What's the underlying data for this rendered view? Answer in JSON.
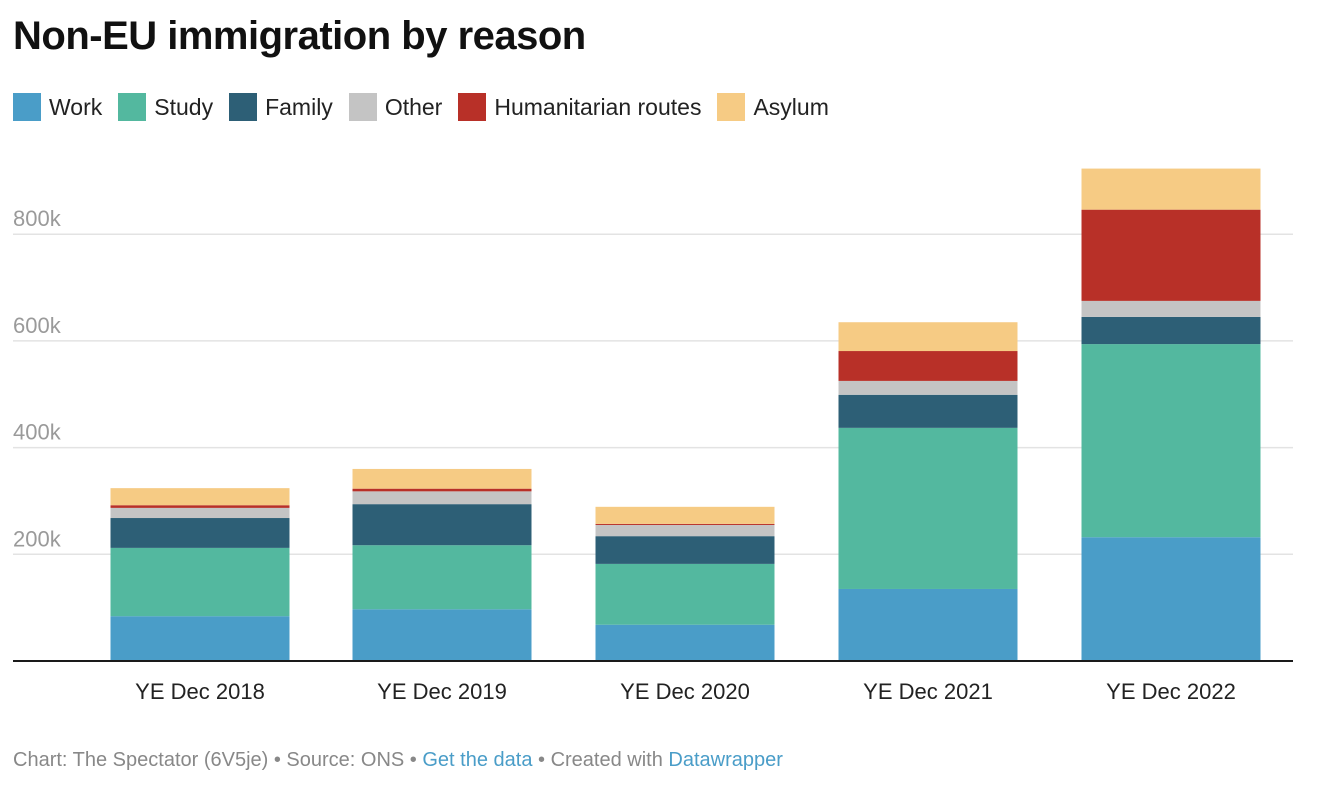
{
  "chart_data": {
    "type": "bar",
    "stacked": true,
    "title": "Non-EU immigration by reason",
    "xlabel": "",
    "ylabel": "",
    "ylim": [
      0,
      930000
    ],
    "yticks": [
      200000,
      400000,
      600000,
      800000
    ],
    "ytick_labels": [
      "200k",
      "400k",
      "600k",
      "800k"
    ],
    "grid": true,
    "legend_position": "top-left",
    "categories": [
      "YE Dec 2018",
      "YE Dec 2019",
      "YE Dec 2020",
      "YE Dec 2021",
      "YE Dec 2022"
    ],
    "series": [
      {
        "name": "Work",
        "color": "#4a9dc8",
        "values": [
          84000,
          97000,
          68000,
          135000,
          232000
        ]
      },
      {
        "name": "Study",
        "color": "#53b89f",
        "values": [
          128000,
          120000,
          114000,
          302000,
          362000
        ]
      },
      {
        "name": "Family",
        "color": "#2d5f76",
        "values": [
          56000,
          77000,
          52000,
          62000,
          51000
        ]
      },
      {
        "name": "Other",
        "color": "#c4c4c4",
        "values": [
          19000,
          24000,
          21000,
          26000,
          30000
        ]
      },
      {
        "name": "Humanitarian routes",
        "color": "#b83028",
        "values": [
          5000,
          5000,
          2000,
          56000,
          171000
        ]
      },
      {
        "name": "Asylum",
        "color": "#f6cb84",
        "values": [
          32000,
          37000,
          32000,
          54000,
          77000
        ]
      }
    ]
  },
  "footer": {
    "credit": "Chart: The Spectator (6V5je) • Source: ONS • ",
    "get_data": "Get the data",
    "separator": " • Created with ",
    "datawrapper": "Datawrapper"
  }
}
